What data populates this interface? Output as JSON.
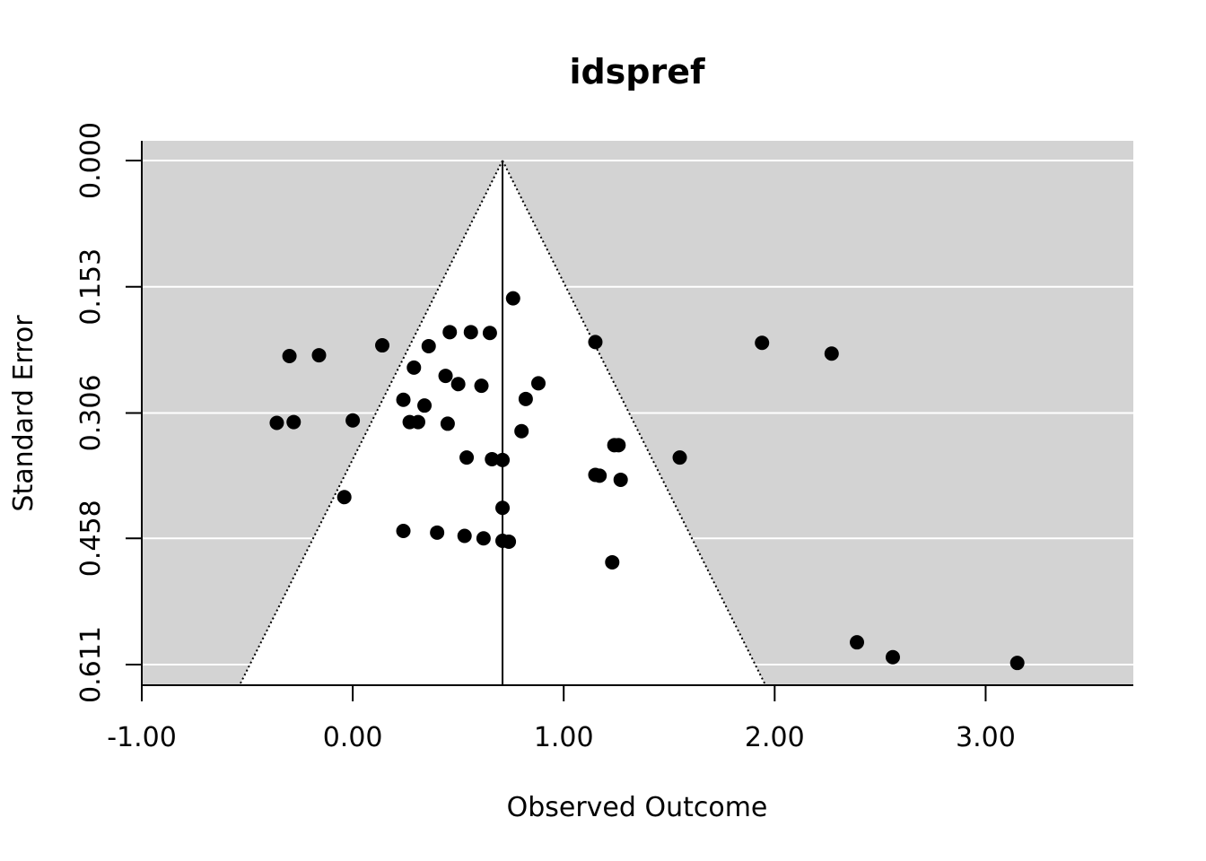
{
  "chart_data": {
    "type": "scatter",
    "subtype": "funnel",
    "title": "idspref",
    "xlabel": "Observed Outcome",
    "ylabel": "Standard Error",
    "xlim": [
      -1.0,
      3.7
    ],
    "ylim": [
      0.0,
      0.635
    ],
    "y_reversed": true,
    "x_ticks": [
      -1.0,
      0.0,
      1.0,
      2.0,
      3.0
    ],
    "x_tick_labels": [
      "-1.00",
      "0.00",
      "1.00",
      "2.00",
      "3.00"
    ],
    "y_ticks": [
      0.0,
      0.153,
      0.306,
      0.458,
      0.611
    ],
    "y_tick_labels": [
      "0.000",
      "0.153",
      "0.306",
      "0.458",
      "0.611"
    ],
    "grid": true,
    "center_estimate": 0.71,
    "funnel_z": 1.96,
    "background_color": "#d3d3d3",
    "funnel_fill": "#ffffff",
    "point_color": "#000000",
    "points": [
      {
        "x": 0.76,
        "y": 0.167
      },
      {
        "x": 0.46,
        "y": 0.208
      },
      {
        "x": 0.56,
        "y": 0.208
      },
      {
        "x": 0.65,
        "y": 0.209
      },
      {
        "x": 1.15,
        "y": 0.22
      },
      {
        "x": 1.94,
        "y": 0.221
      },
      {
        "x": 2.27,
        "y": 0.234
      },
      {
        "x": 0.14,
        "y": 0.224
      },
      {
        "x": 0.36,
        "y": 0.225
      },
      {
        "x": -0.3,
        "y": 0.237
      },
      {
        "x": -0.16,
        "y": 0.236
      },
      {
        "x": 0.29,
        "y": 0.251
      },
      {
        "x": 0.44,
        "y": 0.261
      },
      {
        "x": 0.5,
        "y": 0.271
      },
      {
        "x": 0.61,
        "y": 0.273
      },
      {
        "x": 0.88,
        "y": 0.27
      },
      {
        "x": 0.82,
        "y": 0.289
      },
      {
        "x": 0.24,
        "y": 0.29
      },
      {
        "x": 0.34,
        "y": 0.297
      },
      {
        "x": -0.36,
        "y": 0.318
      },
      {
        "x": -0.28,
        "y": 0.317
      },
      {
        "x": 0.0,
        "y": 0.315
      },
      {
        "x": 0.27,
        "y": 0.317
      },
      {
        "x": 0.31,
        "y": 0.317
      },
      {
        "x": 0.45,
        "y": 0.319
      },
      {
        "x": 0.8,
        "y": 0.328
      },
      {
        "x": 1.24,
        "y": 0.345
      },
      {
        "x": 1.26,
        "y": 0.345
      },
      {
        "x": 0.54,
        "y": 0.36
      },
      {
        "x": 0.66,
        "y": 0.362
      },
      {
        "x": 0.71,
        "y": 0.363
      },
      {
        "x": 1.55,
        "y": 0.36
      },
      {
        "x": 1.15,
        "y": 0.381
      },
      {
        "x": 1.17,
        "y": 0.382
      },
      {
        "x": 1.27,
        "y": 0.387
      },
      {
        "x": -0.04,
        "y": 0.408
      },
      {
        "x": 0.71,
        "y": 0.421
      },
      {
        "x": 0.24,
        "y": 0.449
      },
      {
        "x": 0.4,
        "y": 0.451
      },
      {
        "x": 0.53,
        "y": 0.455
      },
      {
        "x": 0.62,
        "y": 0.458
      },
      {
        "x": 0.71,
        "y": 0.461
      },
      {
        "x": 0.74,
        "y": 0.462
      },
      {
        "x": 1.23,
        "y": 0.487
      },
      {
        "x": 2.39,
        "y": 0.584
      },
      {
        "x": 2.56,
        "y": 0.602
      },
      {
        "x": 3.15,
        "y": 0.609
      }
    ]
  }
}
